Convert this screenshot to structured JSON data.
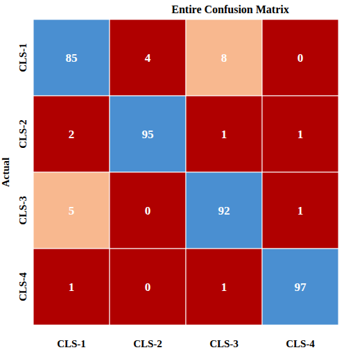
{
  "chart_data": {
    "type": "heatmap",
    "title": "Entire Confusion Matrix",
    "ylabel": "Actual",
    "x_categories": [
      "CLS-1",
      "CLS-2",
      "CLS-3",
      "CLS-4"
    ],
    "y_categories": [
      "CLS-1",
      "CLS-2",
      "CLS-3",
      "CLS-4"
    ],
    "cells": [
      [
        85,
        4,
        8,
        0
      ],
      [
        2,
        95,
        1,
        1
      ],
      [
        5,
        0,
        92,
        1
      ],
      [
        1,
        0,
        1,
        97
      ]
    ],
    "colors": [
      [
        "#4a8fd1",
        "#b00000",
        "#f8b88f",
        "#b00000"
      ],
      [
        "#b00000",
        "#4a8fd1",
        "#b00000",
        "#b00000"
      ],
      [
        "#f8b88f",
        "#b00000",
        "#4a8fd1",
        "#b00000"
      ],
      [
        "#b00000",
        "#b00000",
        "#b00000",
        "#4a8fd1"
      ]
    ],
    "data_labels": true
  }
}
